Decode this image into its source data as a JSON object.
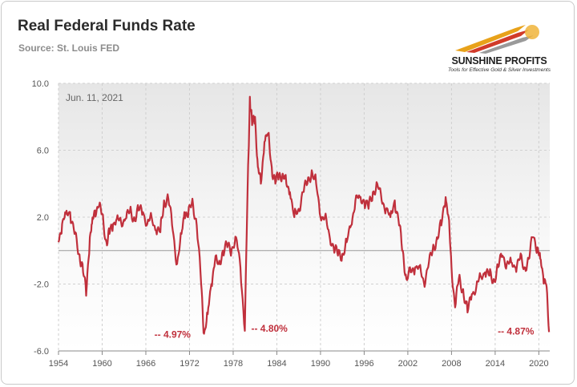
{
  "header": {
    "title": "Real Federal Funds Rate",
    "subtitle": "Source: St. Louis FED"
  },
  "logo": {
    "name": "SUNSHINE PROFITS",
    "tagline": "Tools for Effective Gold & Silver Investments",
    "colors": [
      "#e8a21a",
      "#d13b2a",
      "#9a9a9a"
    ]
  },
  "chart_data": {
    "type": "line",
    "title": "Real Federal Funds Rate",
    "date_label": "Jun. 11, 2021",
    "xlim": [
      1954,
      2021.5
    ],
    "ylim": [
      -6,
      10
    ],
    "x_ticks": [
      "1954",
      "1960",
      "1966",
      "1972",
      "1978",
      "1984",
      "1990",
      "1996",
      "2002",
      "2008",
      "2014",
      "2020"
    ],
    "y_ticks": [
      "10.0",
      "6.0",
      "2.0",
      "-2.0",
      "-6.0"
    ],
    "grid": true,
    "zero_line": 0,
    "line_color": "#c0303c",
    "series": [
      {
        "x": [
          1954.0,
          1954.5,
          1955.0,
          1955.6,
          1956.2,
          1956.8,
          1957.3,
          1957.8,
          1958.3,
          1958.6,
          1959.0,
          1959.5,
          1960.0,
          1960.6,
          1961.0,
          1961.5,
          1962.0,
          1962.6,
          1963.2,
          1963.8,
          1964.4,
          1965.0,
          1965.6,
          1966.2,
          1966.8,
          1967.4,
          1968.0,
          1968.5,
          1969.1,
          1969.7,
          1970.3,
          1970.9,
          1971.3,
          1971.8,
          1972.4,
          1973.0,
          1973.6,
          1974.0,
          1974.5,
          1975.0,
          1975.5,
          1976.0,
          1976.6,
          1977.2,
          1977.8,
          1978.4,
          1979.0,
          1979.6,
          1980.0,
          1980.3,
          1980.6,
          1981.0,
          1981.4,
          1981.8,
          1982.3,
          1982.8,
          1983.3,
          1983.8,
          1984.3,
          1984.8,
          1985.3,
          1985.8,
          1986.4,
          1987.0,
          1987.6,
          1988.2,
          1988.8,
          1989.4,
          1990.0,
          1990.6,
          1991.2,
          1991.8,
          1992.4,
          1993.0,
          1993.6,
          1994.2,
          1994.8,
          1995.4,
          1996.0,
          1996.6,
          1997.2,
          1997.8,
          1998.4,
          1999.0,
          1999.6,
          2000.2,
          2000.8,
          2001.3,
          2001.8,
          2002.4,
          2003.0,
          2003.6,
          2004.2,
          2004.8,
          2005.4,
          2006.0,
          2006.6,
          2007.2,
          2007.6,
          2008.0,
          2008.5,
          2009.0,
          2009.6,
          2010.2,
          2010.8,
          2011.4,
          2012.0,
          2012.6,
          2013.2,
          2013.8,
          2014.4,
          2015.0,
          2015.6,
          2016.2,
          2016.8,
          2017.4,
          2018.0,
          2018.6,
          2019.2,
          2019.8,
          2020.2,
          2020.6,
          2021.0,
          2021.4
        ],
        "values": [
          0.5,
          1.6,
          2.2,
          2.3,
          1.0,
          -0.2,
          -0.8,
          -2.7,
          0.8,
          1.6,
          2.4,
          2.6,
          2.2,
          0.5,
          1.0,
          1.6,
          1.9,
          1.7,
          1.9,
          2.3,
          2.0,
          2.4,
          2.3,
          1.6,
          2.0,
          1.2,
          1.1,
          3.0,
          3.1,
          1.2,
          -0.8,
          1.0,
          2.3,
          2.0,
          3.1,
          1.5,
          -2.0,
          -4.97,
          -3.8,
          -2.0,
          -0.6,
          -0.8,
          0.0,
          0.2,
          0.1,
          0.8,
          -1.0,
          -4.8,
          4.0,
          9.2,
          7.5,
          8.0,
          5.0,
          4.0,
          6.5,
          7.0,
          5.0,
          4.0,
          4.5,
          4.6,
          4.0,
          3.5,
          2.0,
          2.5,
          3.5,
          4.0,
          4.8,
          4.0,
          2.0,
          2.0,
          1.0,
          0.2,
          -0.3,
          -0.2,
          0.5,
          1.5,
          3.0,
          3.2,
          3.0,
          2.5,
          3.5,
          4.0,
          3.0,
          2.5,
          2.0,
          3.0,
          1.5,
          0.0,
          -1.7,
          -1.3,
          -1.0,
          -1.0,
          -1.9,
          -1.0,
          0.0,
          0.8,
          1.5,
          3.2,
          2.0,
          -1.0,
          -3.4,
          -1.7,
          -2.3,
          -3.7,
          -2.6,
          -2.2,
          -1.5,
          -1.3,
          -1.5,
          -1.7,
          -1.0,
          -0.3,
          -0.8,
          -0.7,
          -1.0,
          -0.5,
          -1.0,
          -0.5,
          0.8,
          0.2,
          -0.5,
          -1.5,
          -2.0,
          -4.87
        ]
      }
    ],
    "annotations": [
      {
        "text": "-- 4.97%",
        "x": 1974.0,
        "y": -4.97
      },
      {
        "text": "-- 4.80%",
        "x": 1979.6,
        "y": -4.8
      },
      {
        "text": "-- 4.87%",
        "x": 2021.4,
        "y": -4.87
      }
    ]
  }
}
